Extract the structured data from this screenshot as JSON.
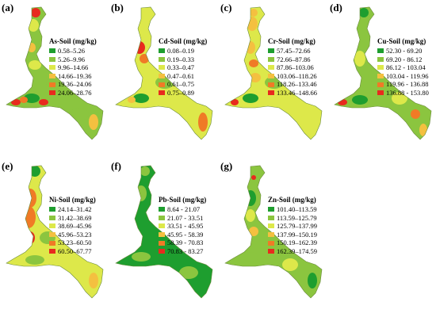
{
  "colors": [
    "#1e9e2f",
    "#8bc53f",
    "#dde84a",
    "#f4c040",
    "#f07a26",
    "#e82a1e"
  ],
  "panels": [
    {
      "label": "(a)",
      "title": "As-Soil (mg/kg)",
      "legend": [
        "0.58–5.26",
        "5.26–9.96",
        "9.96–14.66",
        "14.66–19.36",
        "19.36–24.06",
        "24.06–28.76"
      ]
    },
    {
      "label": "(b)",
      "title": "Cd-Soil (mg/kg)",
      "legend": [
        "0.08–0.19",
        "0.19–0.33",
        "0.33–0.47",
        "0.47–0.61",
        "0.61–0.75",
        "0.75–0.89"
      ]
    },
    {
      "label": "(c)",
      "title": "Cr-Soil (mg/kg)",
      "legend": [
        "57.45–72.66",
        "72.66–87.86",
        "87.86–103.06",
        "103.06–118.26",
        "118.26–133.46",
        "133.46–148.66"
      ]
    },
    {
      "label": "(d)",
      "title": "Cu-Soil (mg/kg)",
      "legend": [
        "52.30 - 69.20",
        "69.20 - 86.12",
        "86.12 - 103.04",
        "103.04 - 119.96",
        "119.96 - 136.88",
        "136.88 - 153.80"
      ]
    },
    {
      "label": "(e)",
      "title": "Ni-Soil (mg/kg)",
      "legend": [
        "24.14–31.42",
        "31.42–38.69",
        "38.69–45.96",
        "45.96–53.23",
        "53.23–60.50",
        "60.50–67.77"
      ]
    },
    {
      "label": "(f)",
      "title": "Pb-Soil (mg/kg)",
      "legend": [
        "8.64 - 21.07",
        "21.07 - 33.51",
        "33.51 - 45.95",
        "45.95 - 58.39",
        "58.39 - 70.83",
        "70.83 - 83.27"
      ]
    },
    {
      "label": "(g)",
      "title": "Zn-Soil (mg/kg)",
      "legend": [
        "101.40–113.59",
        "113.59–125.79",
        "125.79–137.99",
        "137.99–150.19",
        "150.19–162.39",
        "162.39–174.59"
      ]
    }
  ]
}
